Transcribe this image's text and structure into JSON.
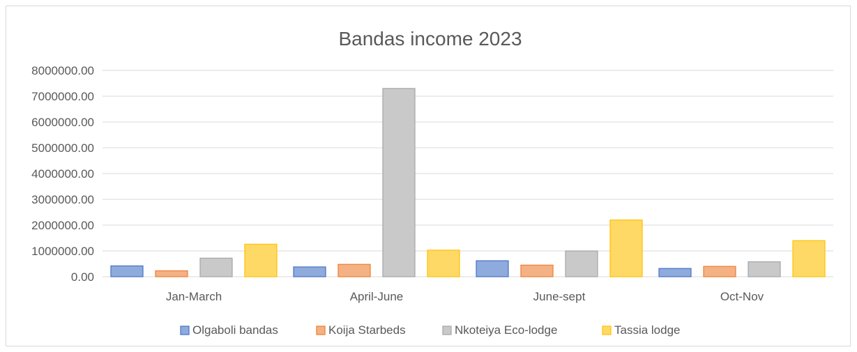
{
  "chart_data": {
    "type": "bar",
    "title": "Bandas income 2023",
    "xlabel": "",
    "ylabel": "",
    "ylim": [
      0,
      8000000
    ],
    "yticks": [
      0,
      1000000,
      2000000,
      3000000,
      4000000,
      5000000,
      6000000,
      7000000,
      8000000
    ],
    "ytick_labels": [
      "0.00",
      "1000000.00",
      "2000000.00",
      "3000000.00",
      "4000000.00",
      "5000000.00",
      "6000000.00",
      "7000000.00",
      "8000000.00"
    ],
    "grid": true,
    "legend_position": "bottom",
    "categories": [
      "Jan-March",
      "April-June",
      "June-sept",
      "Oct-Nov"
    ],
    "series": [
      {
        "name": "Olgaboli bandas",
        "values": [
          420000,
          380000,
          620000,
          320000
        ],
        "color": "#8faadc",
        "stroke": "#4472c4"
      },
      {
        "name": "Koija Starbeds",
        "values": [
          230000,
          480000,
          450000,
          400000
        ],
        "color": "#f4b183",
        "stroke": "#ed7d31"
      },
      {
        "name": "Nkoteiya Eco-lodge",
        "values": [
          720000,
          7300000,
          1000000,
          580000
        ],
        "color": "#c9c9c9",
        "stroke": "#a5a5a5"
      },
      {
        "name": "Tassia lodge",
        "values": [
          1260000,
          1030000,
          2200000,
          1400000
        ],
        "color": "#ffd966",
        "stroke": "#ffc000"
      }
    ]
  }
}
